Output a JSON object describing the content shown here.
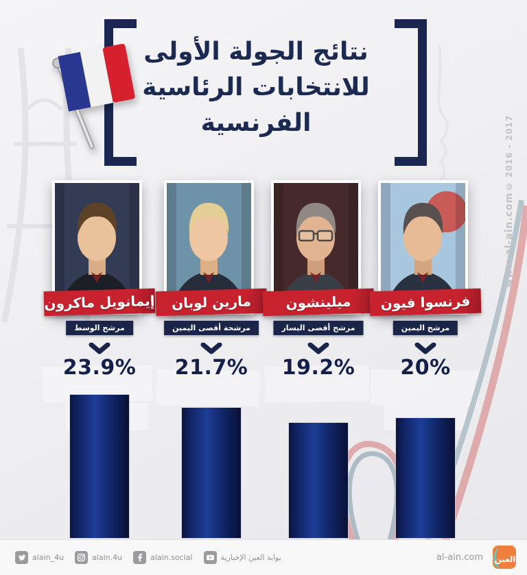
{
  "title": {
    "lines": [
      "نتائج الجولة الأولى",
      "للانتخابات الرئاسية",
      "الفرنسية"
    ]
  },
  "candidates": [
    {
      "name": "إيمانويل ماكرون",
      "role": "مرشح الوسط",
      "percent_label": "23.9%",
      "value": 23.9,
      "avatar": {
        "bg": "#343c55",
        "hair": "#5d4228",
        "skin": "#e9c29b",
        "skin2": "#d9ae84",
        "suit": "#1c2026",
        "glasses": false,
        "accent": ""
      }
    },
    {
      "name": "مارين لوبان",
      "role": "مرشحة أقصى اليمين",
      "percent_label": "21.7%",
      "value": 21.7,
      "avatar": {
        "bg": "#6e93a8",
        "hair": "#e3cf96",
        "skin": "#eec6a2",
        "skin2": "#dcb185",
        "suit": "#262d3b",
        "glasses": false,
        "accent": ""
      }
    },
    {
      "name": "ميلينشون",
      "role": "مرشح أقصى اليسار",
      "percent_label": "19.2%",
      "value": 19.2,
      "avatar": {
        "bg": "#46292a",
        "hair": "#8f8884",
        "skin": "#e2b390",
        "skin2": "#cf9f7b",
        "suit": "#3a3e46",
        "glasses": true,
        "accent": ""
      }
    },
    {
      "name": "فرنسوا فيون",
      "role": "مرشح اليمين",
      "percent_label": "20%",
      "value": 20,
      "avatar": {
        "bg": "#a8c6de",
        "hair": "#57504e",
        "skin": "#e6bb95",
        "skin2": "#d4a67f",
        "suit": "#2a3140",
        "glasses": false,
        "accent": "#cf4840"
      }
    }
  ],
  "chart_data": {
    "type": "bar",
    "title": "نتائج الجولة الأولى للانتخابات الرئاسية الفرنسية",
    "categories": [
      "إيمانويل ماكرون",
      "مارين لوبان",
      "ميلينشون",
      "فرنسوا فيون"
    ],
    "values": [
      23.9,
      21.7,
      19.2,
      20
    ],
    "value_labels": [
      "23.9%",
      "21.7%",
      "19.2%",
      "20%"
    ],
    "xlabel": "",
    "ylabel": "",
    "ylim": [
      0,
      25
    ],
    "grid": false,
    "legend": false,
    "bar_color": "#13266b",
    "orientation": "vertical"
  },
  "side_watermark": {
    "site": "www.al-ain.com",
    "years": "© 2016 - 2017"
  },
  "footer": {
    "site_label": "al-ain.com",
    "logo_text": "العين",
    "social": [
      {
        "network": "twitter",
        "handle": "alain_4u"
      },
      {
        "network": "instagram",
        "handle": "alain.4u"
      },
      {
        "network": "facebook",
        "handle": "alain.social"
      },
      {
        "network": "youtube",
        "handle": "بوابة العين الإخبارية"
      }
    ]
  },
  "colors": {
    "navy_title": "#1c2a52",
    "banner_red": "#c8222f",
    "role_navy": "#1a2547",
    "bar_dark": "#0b1542",
    "bar_light": "#1e3d97",
    "footer_icon_gray": "#9b9b9e",
    "logo_orange": "#ef7f3c",
    "logo_teal": "#72bfae",
    "flag_blue": "#2a3790",
    "flag_red": "#d6202e"
  }
}
